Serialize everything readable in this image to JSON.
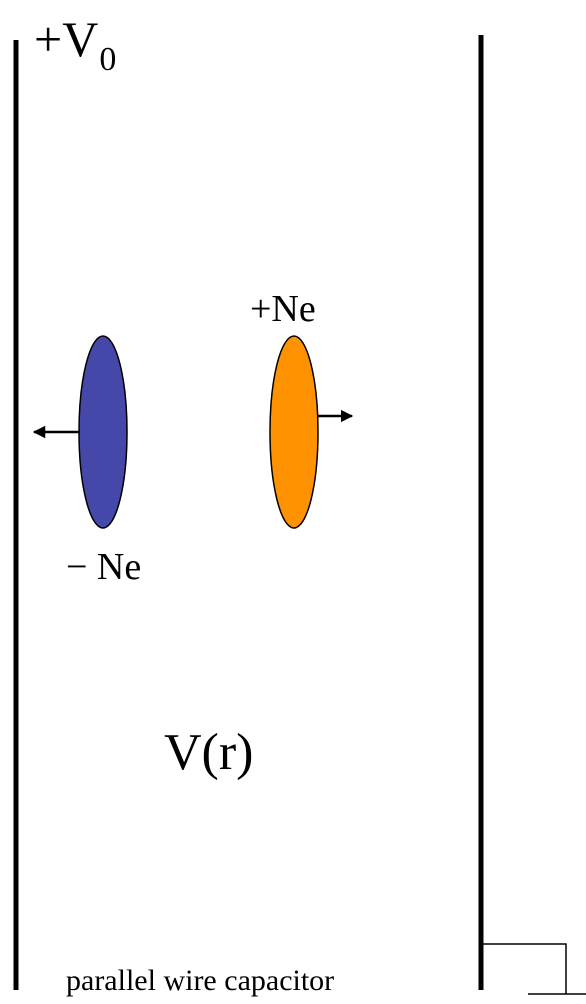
{
  "labels": {
    "potential_top": "+V",
    "potential_top_subscript": "0",
    "positive_charge": "+Ne",
    "negative_charge": "− Ne",
    "field_potential": "V(r)",
    "caption": "parallel wire capacitor"
  },
  "colors": {
    "negative_charge_fill": "#4548a8",
    "positive_charge_fill": "#ff9200",
    "line": "#000000",
    "background": "#ffffff"
  }
}
